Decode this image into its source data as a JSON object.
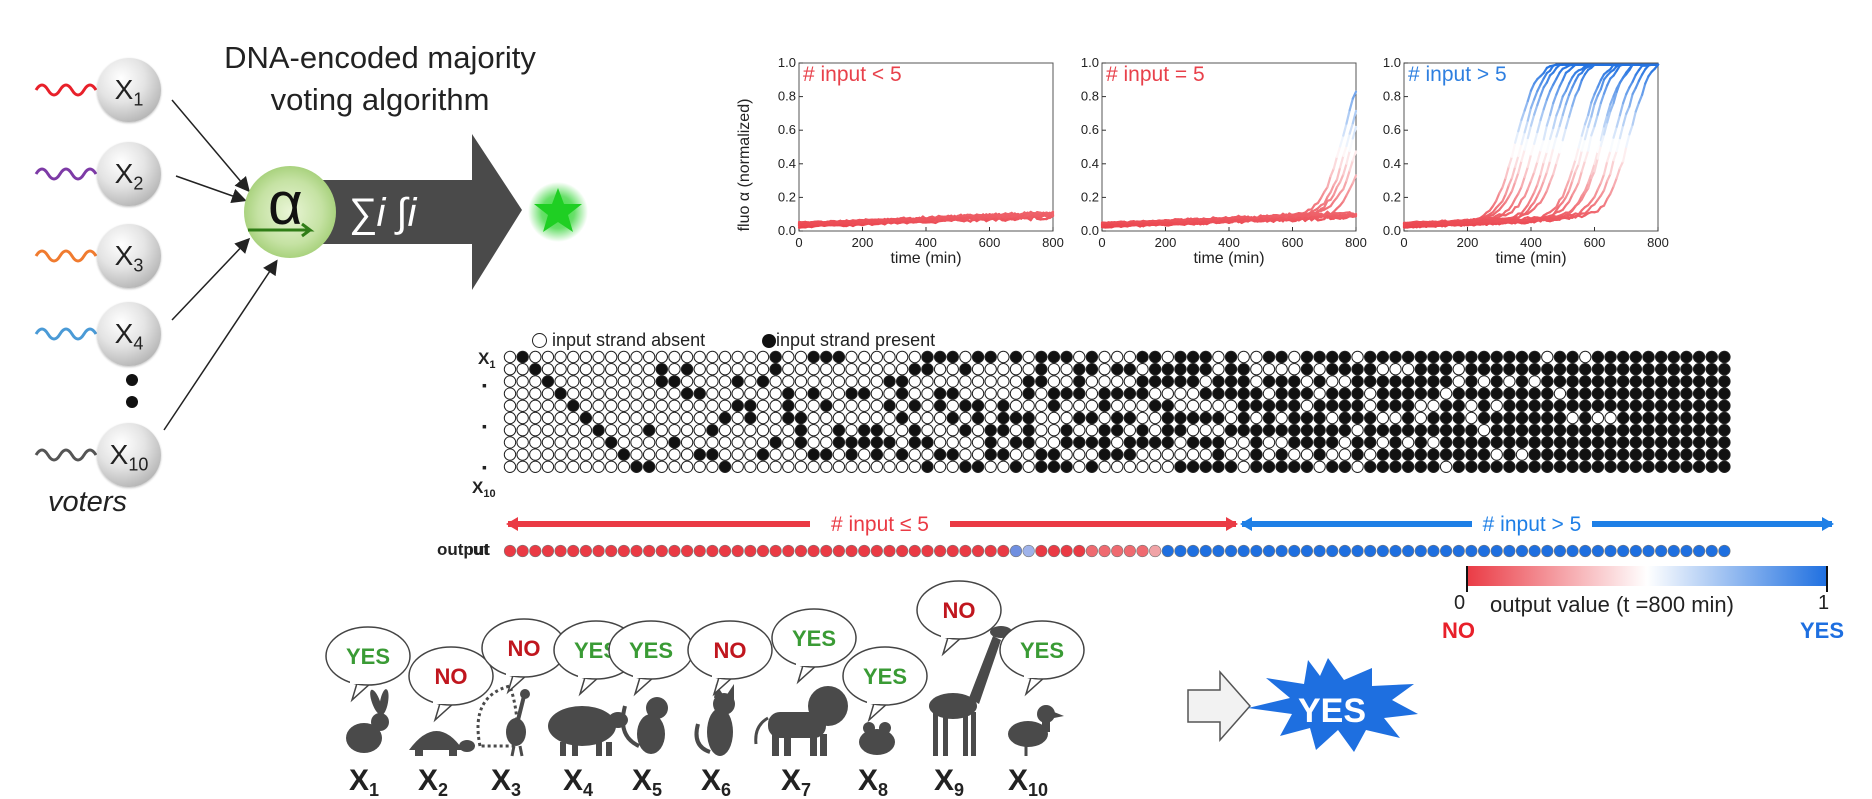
{
  "title": {
    "line1": "DNA-encoded majority",
    "line2": "voting algorithm"
  },
  "voters_label": "voters",
  "voter_nodes": [
    {
      "base": "X",
      "sub": "1",
      "wave_color": "#e8202a"
    },
    {
      "base": "X",
      "sub": "2",
      "wave_color": "#7d3aa6"
    },
    {
      "base": "X",
      "sub": "3",
      "wave_color": "#f07b2f"
    },
    {
      "base": "X",
      "sub": "4",
      "wave_color": "#4a9ad6"
    },
    {
      "base": "X",
      "sub": "10",
      "wave_color": "#555555"
    }
  ],
  "processor": {
    "alpha": "α",
    "formula": "∑i ∫i"
  },
  "plots": {
    "ylabel": "fluo α (normalized)",
    "xlabel": "time (min)",
    "x_ticks": [
      "0",
      "200",
      "400",
      "600",
      "800"
    ],
    "y_ticks": [
      "0.0",
      "0.2",
      "0.4",
      "0.6",
      "0.8",
      "1.0"
    ],
    "panels": [
      {
        "label": "# input < 5",
        "label_color": "#e8414b"
      },
      {
        "label": "# input = 5",
        "label_color": "#e8414b"
      },
      {
        "label": "# input > 5",
        "label_color": "#2e7fe0"
      }
    ]
  },
  "legend": {
    "absent": "input strand absent",
    "present": "input strand present"
  },
  "matrix": {
    "row_top": "X",
    "row_top_sub": "1",
    "row_bottom": "X",
    "row_bottom_sub": "10",
    "ellipsis_marks": [
      "▪",
      "▪",
      "▪"
    ],
    "left_arrow_label": "# input ≤ 5",
    "right_arrow_label": "# input > 5",
    "output_label": "output",
    "left_columns": 52,
    "right_columns": 45,
    "blueish_left_indices": [
      40,
      41
    ]
  },
  "colorbar": {
    "min": "0",
    "max": "1",
    "label": "output value (t =800 min)",
    "no": "NO",
    "yes": "YES"
  },
  "animals": [
    {
      "name": "rabbit",
      "vote": "YES",
      "base": "X",
      "sub": "1"
    },
    {
      "name": "turtle",
      "vote": "NO",
      "base": "X",
      "sub": "2"
    },
    {
      "name": "peacock",
      "vote": "NO",
      "base": "X",
      "sub": "3"
    },
    {
      "name": "sheep",
      "vote": "YES",
      "base": "X",
      "sub": "4"
    },
    {
      "name": "monkey",
      "vote": "YES",
      "base": "X",
      "sub": "5"
    },
    {
      "name": "cat",
      "vote": "NO",
      "base": "X",
      "sub": "6"
    },
    {
      "name": "lion",
      "vote": "YES",
      "base": "X",
      "sub": "7"
    },
    {
      "name": "frog",
      "vote": "YES",
      "base": "X",
      "sub": "8"
    },
    {
      "name": "giraffe",
      "vote": "NO",
      "base": "X",
      "sub": "9"
    },
    {
      "name": "duck",
      "vote": "YES",
      "base": "X",
      "sub": "10"
    }
  ],
  "result": "YES",
  "colors": {
    "yes_green": "#3a9b35",
    "no_red": "#c0161e",
    "red": "#ea3a44",
    "blue": "#1e6fe0",
    "dark": "#4a4a4a"
  }
}
